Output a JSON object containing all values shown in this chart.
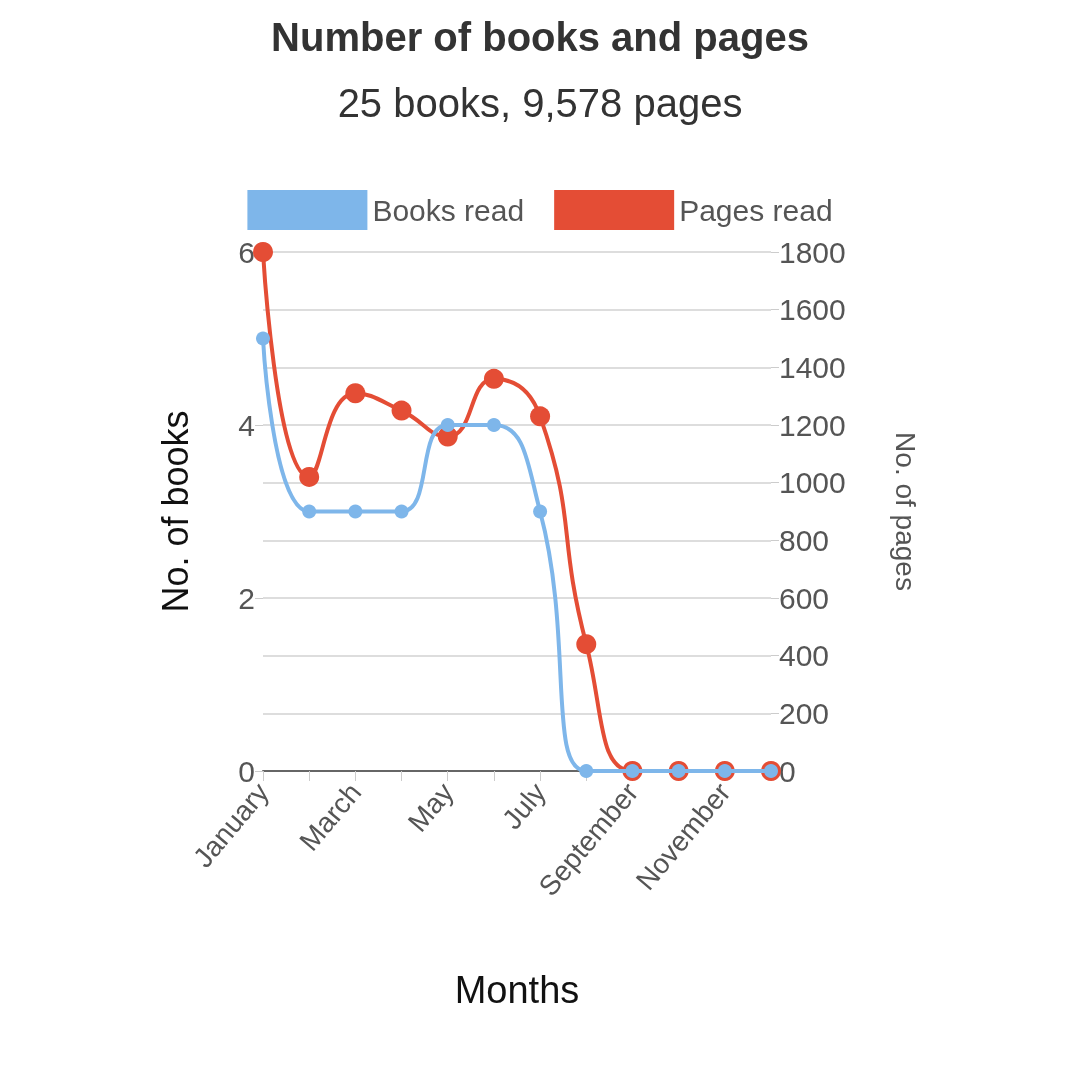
{
  "chart_data": {
    "type": "line",
    "title": "Number of books and pages",
    "subtitle": "25 books, 9,578 pages",
    "xlabel": "Months",
    "ylabel": "No. of books",
    "y2label": "No. of pages",
    "categories": [
      "January",
      null,
      "March",
      null,
      "May",
      null,
      "July",
      null,
      "September",
      null,
      "November",
      null
    ],
    "series": [
      {
        "name": "Books read",
        "color": "#7eb6ea",
        "values": [
          5,
          3,
          3,
          3,
          4,
          4,
          3,
          0,
          0,
          0,
          0,
          0
        ]
      },
      {
        "name": "Pages read",
        "color": "#e44d35",
        "axis": "y2",
        "values": [
          1800,
          1020,
          1310,
          1250,
          1160,
          1360,
          1230,
          440,
          0,
          0,
          0,
          0
        ]
      }
    ],
    "ylim": [
      0,
      6
    ],
    "yticks": [
      0,
      2,
      4,
      6
    ],
    "y2lim": [
      0,
      1800
    ],
    "y2ticks": [
      0,
      200,
      400,
      600,
      800,
      1000,
      1200,
      1400,
      1600,
      1800
    ],
    "grid": "y",
    "legend": "top",
    "marker": "circle",
    "line_style": "solid"
  }
}
